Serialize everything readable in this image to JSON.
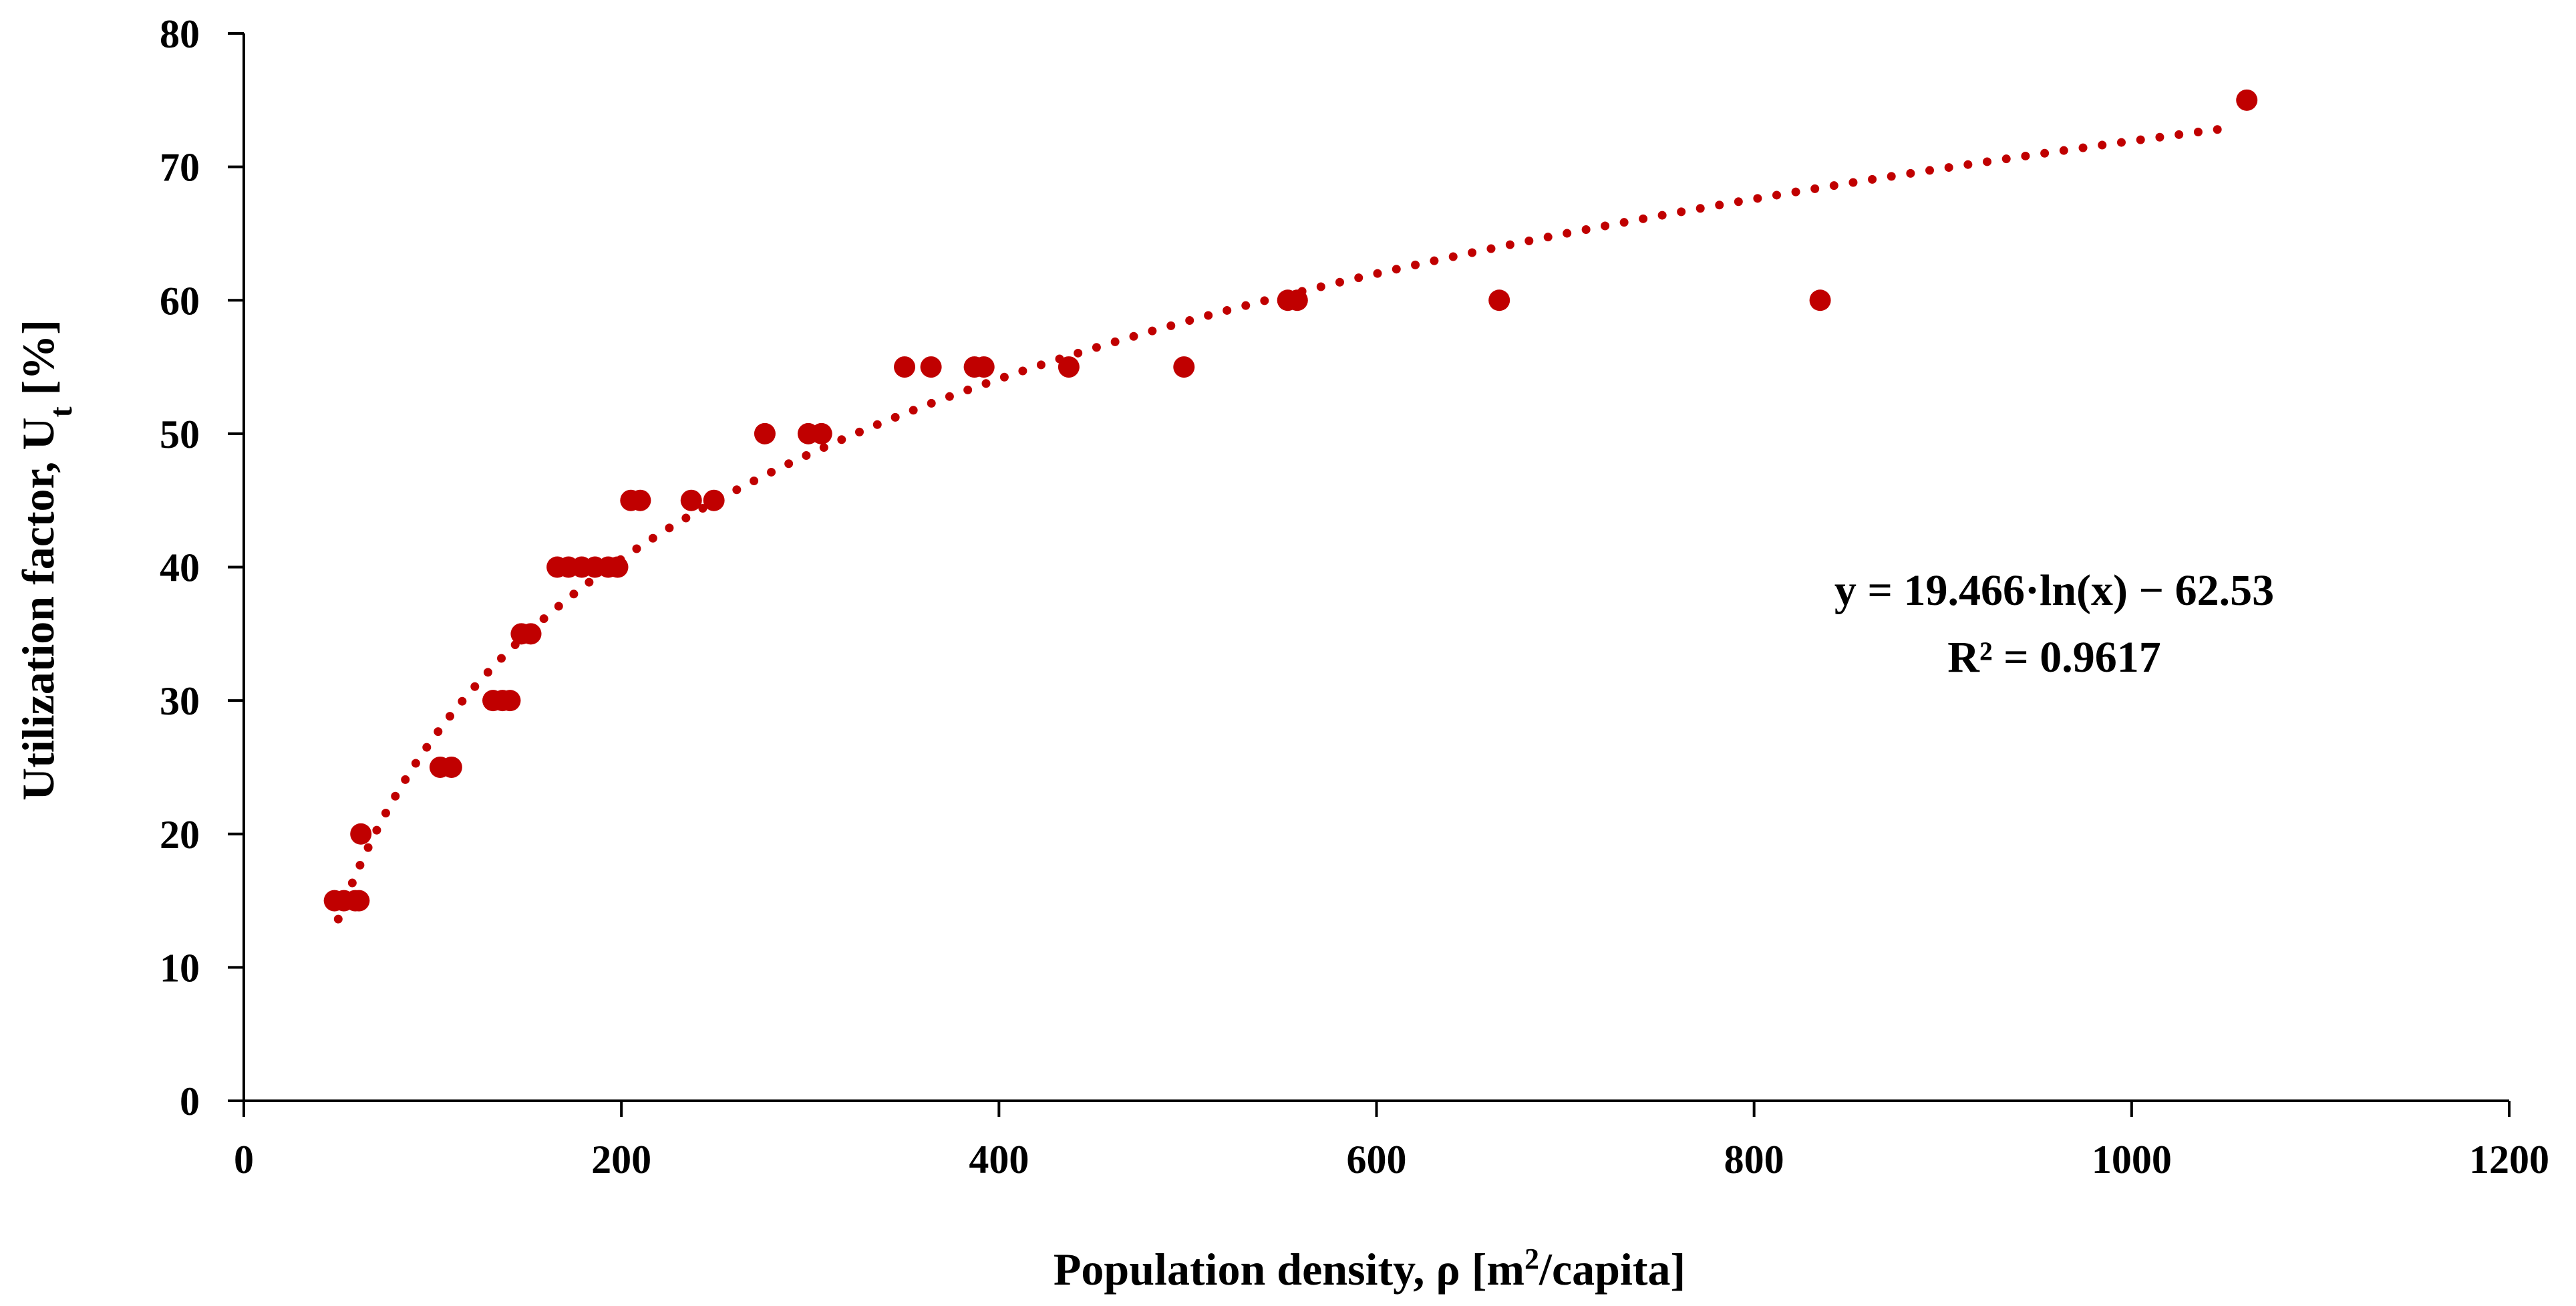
{
  "chart_data": {
    "type": "scatter",
    "title": "",
    "xlabel": "Population density, ρ [m²/capita]",
    "xlabel_parts": {
      "prefix": "Population density, ρ [m",
      "sup": "2",
      "suffix": "/capita]"
    },
    "ylabel": "Utilization factor, Ut [%]",
    "ylabel_parts": {
      "prefix": "Utilization factor, U",
      "sub": "t",
      "suffix": " [%]"
    },
    "xlim": [
      0,
      1200
    ],
    "ylim": [
      0,
      80
    ],
    "xticks": [
      0,
      200,
      400,
      600,
      800,
      1000,
      1200
    ],
    "yticks": [
      0,
      10,
      20,
      30,
      40,
      50,
      60,
      70,
      80
    ],
    "grid": false,
    "marker_color": "#c00000",
    "series": [
      {
        "name": "Utilization factor",
        "points": [
          [
            48,
            15
          ],
          [
            53,
            15
          ],
          [
            59,
            15
          ],
          [
            61,
            15
          ],
          [
            62,
            20
          ],
          [
            104,
            25
          ],
          [
            110,
            25
          ],
          [
            132,
            30
          ],
          [
            137,
            30
          ],
          [
            141,
            30
          ],
          [
            147,
            35
          ],
          [
            152,
            35
          ],
          [
            166,
            40
          ],
          [
            172,
            40
          ],
          [
            179,
            40
          ],
          [
            186,
            40
          ],
          [
            193,
            40
          ],
          [
            198,
            40
          ],
          [
            205,
            45
          ],
          [
            210,
            45
          ],
          [
            237,
            45
          ],
          [
            249,
            45
          ],
          [
            276,
            50
          ],
          [
            299,
            50
          ],
          [
            306,
            50
          ],
          [
            350,
            55
          ],
          [
            364,
            55
          ],
          [
            387,
            55
          ],
          [
            392,
            55
          ],
          [
            437,
            55
          ],
          [
            498,
            55
          ],
          [
            553,
            60
          ],
          [
            558,
            60
          ],
          [
            665,
            60
          ],
          [
            835,
            60
          ],
          [
            1061,
            75
          ]
        ]
      }
    ],
    "trendline": {
      "type": "logarithmic",
      "a": 19.466,
      "b": -62.53,
      "x_range": [
        50,
        1050
      ],
      "style": "dotted",
      "equation_line1": "y = 19.466·ln(x) − 62.53",
      "equation_line2": "R² = 0.9617"
    }
  }
}
